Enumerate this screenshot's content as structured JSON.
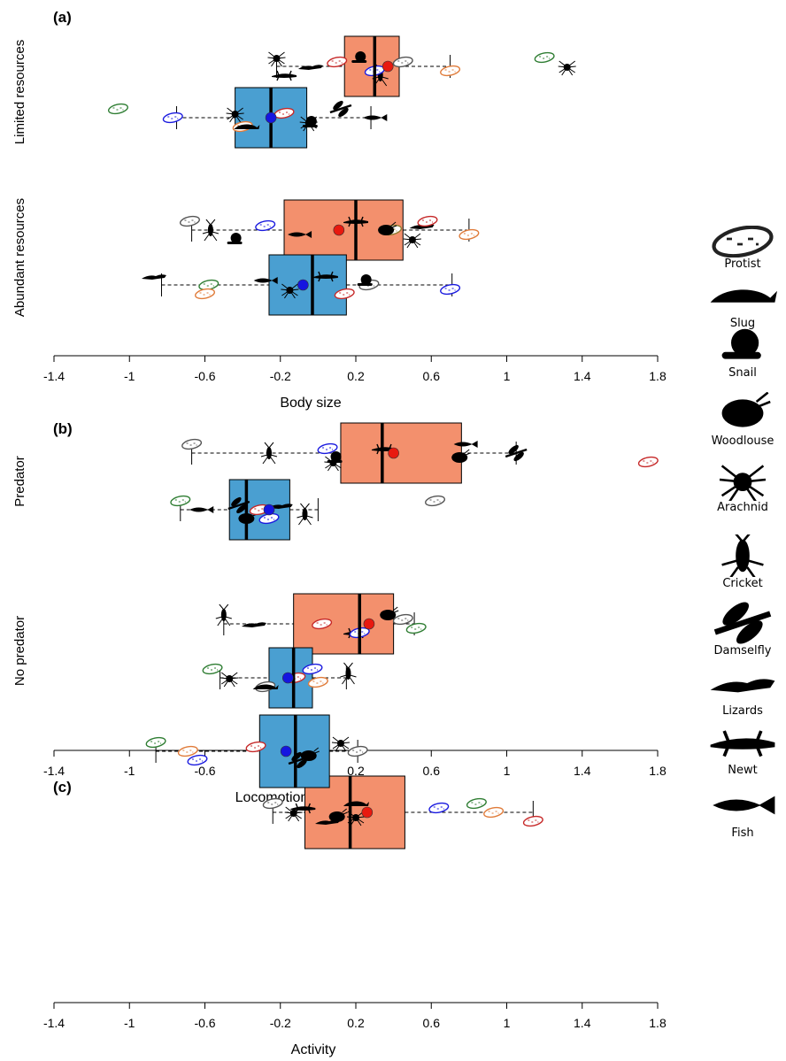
{
  "chart_data": [
    {
      "type": "boxplot",
      "panel_label": "(a)",
      "xlabel": "Body size",
      "xlim": [
        -1.4,
        1.8
      ],
      "xticks": [
        -1.4,
        -1,
        -0.6,
        -0.2,
        0.2,
        0.6,
        1,
        1.4,
        1.8
      ],
      "groups": [
        {
          "label": "Limited resources",
          "boxes": [
            {
              "color": "#f3906d",
              "mean_color": "#e8190f",
              "whisker_low": -0.22,
              "q1": 0.14,
              "median": 0.3,
              "q3": 0.43,
              "whisker_high": 0.7,
              "mean": 0.37,
              "points": [
                {
                  "taxon": "Arachnid",
                  "value": -0.22
                },
                {
                  "taxon": "Lizards",
                  "value": -0.04
                },
                {
                  "taxon": "Newt",
                  "value": -0.18
                },
                {
                  "taxon": "Protist",
                  "value": 0.45,
                  "color": "#555555"
                },
                {
                  "taxon": "Protist",
                  "value": 0.7,
                  "color": "#e07b39"
                },
                {
                  "taxon": "Protist",
                  "value": 1.2,
                  "color": "#2e7d32"
                },
                {
                  "taxon": "Arachnid",
                  "value": 1.32
                },
                {
                  "taxon": "Cricket",
                  "value": 0.33
                },
                {
                  "taxon": "Protist",
                  "value": 0.1,
                  "color": "#c62828"
                },
                {
                  "taxon": "Protist",
                  "value": 0.3,
                  "color": "#1a1adf"
                },
                {
                  "taxon": "Snail",
                  "value": 0.22
                }
              ]
            },
            {
              "color": "#4a9fd1",
              "mean_color": "#1515e0",
              "whisker_low": -0.75,
              "q1": -0.44,
              "median": -0.25,
              "q3": -0.06,
              "whisker_high": 0.28,
              "mean": -0.25,
              "points": [
                {
                  "taxon": "Protist",
                  "value": -1.06,
                  "color": "#2e7d32"
                },
                {
                  "taxon": "Protist",
                  "value": -0.77,
                  "color": "#1a1adf"
                },
                {
                  "taxon": "Protist",
                  "value": -0.4,
                  "color": "#e07b39"
                },
                {
                  "taxon": "Arachnid",
                  "value": -0.44
                },
                {
                  "taxon": "Arachnid",
                  "value": -0.05
                },
                {
                  "taxon": "Damselfly",
                  "value": 0.12
                },
                {
                  "taxon": "Fish",
                  "value": 0.3
                },
                {
                  "taxon": "Slug",
                  "value": -0.38
                },
                {
                  "taxon": "Protist",
                  "value": -0.18,
                  "color": "#c62828"
                },
                {
                  "taxon": "Snail",
                  "value": -0.04
                }
              ]
            }
          ]
        },
        {
          "label": "Abundant resources",
          "boxes": [
            {
              "color": "#f3906d",
              "mean_color": "#e8190f",
              "whisker_low": -0.67,
              "q1": -0.18,
              "median": 0.2,
              "q3": 0.45,
              "whisker_high": 0.8,
              "mean": 0.11,
              "points": [
                {
                  "taxon": "Protist",
                  "value": -0.68,
                  "color": "#555555"
                },
                {
                  "taxon": "Cricket",
                  "value": -0.57
                },
                {
                  "taxon": "Snail",
                  "value": -0.44
                },
                {
                  "taxon": "Protist",
                  "value": -0.28,
                  "color": "#1a1adf"
                },
                {
                  "taxon": "Fish",
                  "value": -0.1
                },
                {
                  "taxon": "Newt",
                  "value": 0.2
                },
                {
                  "taxon": "Protist",
                  "value": 0.39,
                  "color": "#8d7a2e"
                },
                {
                  "taxon": "Arachnid",
                  "value": 0.5
                },
                {
                  "taxon": "Lizards",
                  "value": 0.55
                },
                {
                  "taxon": "Protist",
                  "value": 0.8,
                  "color": "#e07b39"
                },
                {
                  "taxon": "Protist",
                  "value": 0.58,
                  "color": "#c62828"
                },
                {
                  "taxon": "Woodlouse",
                  "value": 0.36
                }
              ]
            },
            {
              "color": "#4a9fd1",
              "mean_color": "#1515e0",
              "whisker_low": -0.83,
              "q1": -0.26,
              "median": -0.03,
              "q3": 0.15,
              "whisker_high": 0.71,
              "mean": -0.08,
              "points": [
                {
                  "taxon": "Lizards",
                  "value": -0.87
                },
                {
                  "taxon": "Protist",
                  "value": -0.58,
                  "color": "#2e7d32"
                },
                {
                  "taxon": "Protist",
                  "value": -0.6,
                  "color": "#e07b39"
                },
                {
                  "taxon": "Fish",
                  "value": -0.28
                },
                {
                  "taxon": "Arachnid",
                  "value": -0.15
                },
                {
                  "taxon": "Newt",
                  "value": 0.04
                },
                {
                  "taxon": "Protist",
                  "value": 0.27,
                  "color": "#555555"
                },
                {
                  "taxon": "Protist",
                  "value": 0.14,
                  "color": "#c62828"
                },
                {
                  "taxon": "Snail",
                  "value": 0.25
                },
                {
                  "taxon": "Protist",
                  "value": 0.7,
                  "color": "#1a1adf"
                }
              ]
            }
          ]
        }
      ]
    },
    {
      "type": "boxplot",
      "panel_label": "(b)",
      "xlabel": "Locomotion morphology",
      "xlim": [
        -1.4,
        1.8
      ],
      "xticks": [
        -1.4,
        -1,
        -0.6,
        -0.2,
        0.2,
        0.6,
        1,
        1.4,
        1.8
      ],
      "groups": [
        {
          "label": "Predator",
          "boxes": [
            {
              "color": "#f3906d",
              "mean_color": "#e8190f",
              "whisker_low": -0.67,
              "q1": 0.12,
              "median": 0.34,
              "q3": 0.76,
              "whisker_high": 1.05,
              "mean": 0.4,
              "points": [
                {
                  "taxon": "Protist",
                  "value": -0.67,
                  "color": "#555555"
                },
                {
                  "taxon": "Cricket",
                  "value": -0.26
                },
                {
                  "taxon": "Arachnid",
                  "value": 0.08
                },
                {
                  "taxon": "Newt",
                  "value": 0.35
                },
                {
                  "taxon": "Woodlouse",
                  "value": 0.75
                },
                {
                  "taxon": "Fish",
                  "value": 0.78
                },
                {
                  "taxon": "Damselfly",
                  "value": 1.05
                },
                {
                  "taxon": "Protist",
                  "value": 1.75,
                  "color": "#c62828"
                },
                {
                  "taxon": "Protist",
                  "value": 0.05,
                  "color": "#1a1adf"
                },
                {
                  "taxon": "Snail",
                  "value": 0.09
                }
              ]
            },
            {
              "color": "#4a9fd1",
              "mean_color": "#1515e0",
              "whisker_low": -0.73,
              "q1": -0.47,
              "median": -0.38,
              "q3": -0.15,
              "whisker_high": 0.0,
              "mean": -0.26,
              "points": [
                {
                  "taxon": "Protist",
                  "value": -0.73,
                  "color": "#2e7d32"
                },
                {
                  "taxon": "Fish",
                  "value": -0.62
                },
                {
                  "taxon": "Woodlouse",
                  "value": -0.38
                },
                {
                  "taxon": "Lizards",
                  "value": -0.2
                },
                {
                  "taxon": "Cricket",
                  "value": -0.07
                },
                {
                  "taxon": "Protist",
                  "value": 0.62,
                  "color": "#555555"
                },
                {
                  "taxon": "Protist",
                  "value": -0.31,
                  "color": "#c62828"
                },
                {
                  "taxon": "Protist",
                  "value": -0.26,
                  "color": "#1a1adf"
                },
                {
                  "taxon": "Damselfly",
                  "value": -0.42
                }
              ]
            }
          ]
        },
        {
          "label": "No predator",
          "boxes": [
            {
              "color": "#f3906d",
              "mean_color": "#e8190f",
              "whisker_low": -0.5,
              "q1": -0.13,
              "median": 0.22,
              "q3": 0.4,
              "whisker_high": 0.51,
              "mean": 0.27,
              "points": [
                {
                  "taxon": "Cricket",
                  "value": -0.5
                },
                {
                  "taxon": "Lizards",
                  "value": -0.34
                },
                {
                  "taxon": "Newt",
                  "value": 0.2
                },
                {
                  "taxon": "Protist",
                  "value": 0.45,
                  "color": "#555555"
                },
                {
                  "taxon": "Protist",
                  "value": 0.52,
                  "color": "#2e7d32"
                },
                {
                  "taxon": "Woodlouse",
                  "value": 0.37
                },
                {
                  "taxon": "Protist",
                  "value": 0.02,
                  "color": "#c62828"
                },
                {
                  "taxon": "Protist",
                  "value": 0.22,
                  "color": "#1a1adf"
                }
              ]
            },
            {
              "color": "#4a9fd1",
              "mean_color": "#1515e0",
              "whisker_low": -0.52,
              "q1": -0.26,
              "median": -0.13,
              "q3": -0.03,
              "whisker_high": 0.15,
              "mean": -0.16,
              "points": [
                {
                  "taxon": "Protist",
                  "value": -0.56,
                  "color": "#2e7d32"
                },
                {
                  "taxon": "Arachnid",
                  "value": -0.47
                },
                {
                  "taxon": "Protist",
                  "value": -0.28,
                  "color": "#555555"
                },
                {
                  "taxon": "Cricket",
                  "value": 0.16
                },
                {
                  "taxon": "Protist",
                  "value": 0.0,
                  "color": "#e07b39"
                },
                {
                  "taxon": "Protist",
                  "value": -0.03,
                  "color": "#1a1adf"
                },
                {
                  "taxon": "Protist",
                  "value": -0.12,
                  "color": "#c62828"
                },
                {
                  "taxon": "Slug",
                  "value": -0.28
                }
              ]
            }
          ]
        }
      ]
    },
    {
      "type": "boxplot",
      "panel_label": "(c)",
      "xlabel": "Activity",
      "xlim": [
        -1.4,
        1.8
      ],
      "xticks": [
        -1.4,
        -1,
        -0.6,
        -0.2,
        0.2,
        0.6,
        1,
        1.4,
        1.8
      ],
      "groups": [
        {
          "label": "",
          "boxes": [
            {
              "color": "#f3906d",
              "mean_color": "#e8190f",
              "whisker_low": -0.24,
              "q1": -0.07,
              "median": 0.17,
              "q3": 0.46,
              "whisker_high": 1.14,
              "mean": 0.26,
              "points": [
                {
                  "taxon": "Protist",
                  "value": -0.24,
                  "color": "#555555"
                },
                {
                  "taxon": "Arachnid",
                  "value": -0.13
                },
                {
                  "taxon": "Lizards",
                  "value": 0.05
                },
                {
                  "taxon": "Newt",
                  "value": -0.08
                },
                {
                  "taxon": "Arachnid",
                  "value": 0.2
                },
                {
                  "taxon": "Protist",
                  "value": 0.84,
                  "color": "#2e7d32"
                },
                {
                  "taxon": "Protist",
                  "value": 0.93,
                  "color": "#e07b39"
                },
                {
                  "taxon": "Protist",
                  "value": 1.14,
                  "color": "#c62828"
                },
                {
                  "taxon": "Protist",
                  "value": 0.64,
                  "color": "#1a1adf"
                },
                {
                  "taxon": "Woodlouse",
                  "value": 0.1
                },
                {
                  "taxon": "Slug",
                  "value": 0.2
                }
              ]
            },
            {
              "color": "#4a9fd1",
              "mean_color": "#1515e0",
              "whisker_low": -0.86,
              "q1": -0.31,
              "median": -0.12,
              "q3": 0.06,
              "whisker_high": 0.21,
              "mean": -0.17,
              "points": [
                {
                  "taxon": "Protist",
                  "value": -0.86,
                  "color": "#2e7d32"
                },
                {
                  "taxon": "Protist",
                  "value": -0.69,
                  "color": "#e07b39"
                },
                {
                  "taxon": "Protist",
                  "value": -0.64,
                  "color": "#1a1adf"
                },
                {
                  "taxon": "Protist",
                  "value": -0.33,
                  "color": "#c62828"
                },
                {
                  "taxon": "Woodlouse",
                  "value": -0.05
                },
                {
                  "taxon": "Arachnid",
                  "value": 0.12
                },
                {
                  "taxon": "Protist",
                  "value": 0.21,
                  "color": "#555555"
                },
                {
                  "taxon": "Damselfly",
                  "value": -0.1
                }
              ]
            }
          ]
        }
      ]
    }
  ],
  "legend": {
    "items": [
      {
        "label": "Protist",
        "icon": "protist-icon"
      },
      {
        "label": "Slug",
        "icon": "slug-icon"
      },
      {
        "label": "Snail",
        "icon": "snail-icon"
      },
      {
        "label": "Woodlouse",
        "icon": "woodlouse-icon"
      },
      {
        "label": "Arachnid",
        "icon": "arachnid-icon"
      },
      {
        "label": "Cricket",
        "icon": "cricket-icon"
      },
      {
        "label": "Damselfly",
        "icon": "damselfly-icon"
      },
      {
        "label": "Lizards",
        "icon": "lizards-icon"
      },
      {
        "label": "Newt",
        "icon": "newt-icon"
      },
      {
        "label": "Fish",
        "icon": "fish-icon"
      }
    ]
  },
  "colors": {
    "box_treatment_a": "#f3906d",
    "box_treatment_b": "#4a9fd1",
    "mean_a": "#e8190f",
    "mean_b": "#1515e0",
    "silhouette": "#000000"
  }
}
